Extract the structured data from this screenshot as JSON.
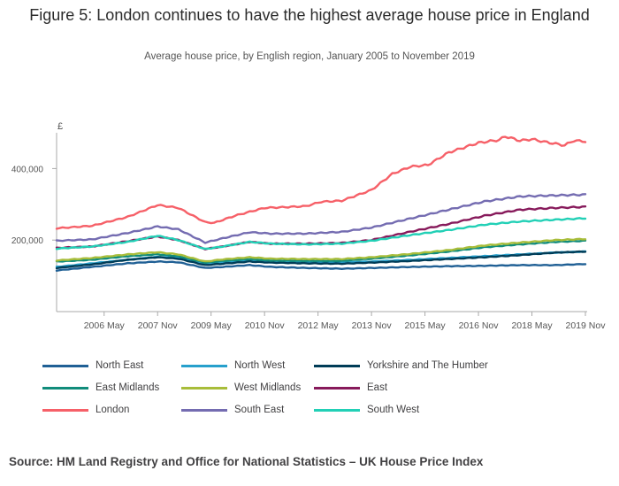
{
  "title": "Figure 5: London continues to have the highest average house price in England",
  "subtitle": "Average house price, by English region, January 2005 to November 2019",
  "source": "Source: HM Land Registry and Office for National Statistics – UK House Price Index",
  "chart_data": {
    "type": "line",
    "title": "Figure 5: London continues to have the highest average house price in England",
    "subtitle": "Average house price, by English region, January 2005 to November 2019",
    "ylabel": "£",
    "xlim": [
      "2005-01",
      "2019-11"
    ],
    "ylim": [
      0,
      500000
    ],
    "y_ticks": [
      200000,
      400000
    ],
    "y_tick_labels": [
      "200,000",
      "400,000"
    ],
    "x_ticks": [
      "2006-05",
      "2007-11",
      "2009-05",
      "2010-11",
      "2012-05",
      "2013-11",
      "2015-05",
      "2016-11",
      "2018-05",
      "2019-11"
    ],
    "x_tick_labels": [
      "2006 May",
      "2007 Nov",
      "2009 May",
      "2010 Nov",
      "2012 May",
      "2013 Nov",
      "2015 May",
      "2016 Nov",
      "2018 May",
      "2019 Nov"
    ],
    "grid": false,
    "legend": "bottom",
    "series": [
      {
        "name": "North East",
        "color": "#206095",
        "points": [
          [
            "2005-01",
            115000
          ],
          [
            "2006-01",
            125000
          ],
          [
            "2007-01",
            135000
          ],
          [
            "2007-11",
            140000
          ],
          [
            "2008-06",
            138000
          ],
          [
            "2009-03",
            122000
          ],
          [
            "2009-09",
            125000
          ],
          [
            "2010-06",
            130000
          ],
          [
            "2011-01",
            125000
          ],
          [
            "2012-01",
            122000
          ],
          [
            "2013-01",
            120000
          ],
          [
            "2013-11",
            122000
          ],
          [
            "2015-01",
            125000
          ],
          [
            "2016-01",
            127000
          ],
          [
            "2017-01",
            128000
          ],
          [
            "2018-01",
            130000
          ],
          [
            "2019-01",
            130000
          ],
          [
            "2019-11",
            133000
          ]
        ]
      },
      {
        "name": "North West",
        "color": "#27a0cc",
        "points": [
          [
            "2005-01",
            125000
          ],
          [
            "2006-01",
            135000
          ],
          [
            "2007-01",
            145000
          ],
          [
            "2007-11",
            153000
          ],
          [
            "2008-06",
            150000
          ],
          [
            "2009-03",
            133000
          ],
          [
            "2009-09",
            137000
          ],
          [
            "2010-06",
            142000
          ],
          [
            "2011-01",
            138000
          ],
          [
            "2012-01",
            137000
          ],
          [
            "2013-01",
            137000
          ],
          [
            "2013-11",
            140000
          ],
          [
            "2015-01",
            145000
          ],
          [
            "2016-01",
            150000
          ],
          [
            "2017-01",
            155000
          ],
          [
            "2018-01",
            160000
          ],
          [
            "2019-01",
            165000
          ],
          [
            "2019-11",
            168000
          ]
        ]
      },
      {
        "name": "Yorkshire and The Humber",
        "color": "#003c57",
        "points": [
          [
            "2005-01",
            122000
          ],
          [
            "2006-01",
            132000
          ],
          [
            "2007-01",
            145000
          ],
          [
            "2007-11",
            152000
          ],
          [
            "2008-06",
            148000
          ],
          [
            "2009-03",
            130000
          ],
          [
            "2009-09",
            134000
          ],
          [
            "2010-06",
            140000
          ],
          [
            "2011-01",
            137000
          ],
          [
            "2012-01",
            135000
          ],
          [
            "2013-01",
            134000
          ],
          [
            "2013-11",
            137000
          ],
          [
            "2015-01",
            142000
          ],
          [
            "2016-01",
            147000
          ],
          [
            "2017-01",
            152000
          ],
          [
            "2018-01",
            158000
          ],
          [
            "2019-01",
            165000
          ],
          [
            "2019-11",
            168000
          ]
        ]
      },
      {
        "name": "East Midlands",
        "color": "#118c7b",
        "points": [
          [
            "2005-01",
            140000
          ],
          [
            "2006-01",
            145000
          ],
          [
            "2007-01",
            155000
          ],
          [
            "2007-11",
            160000
          ],
          [
            "2008-06",
            155000
          ],
          [
            "2009-03",
            137000
          ],
          [
            "2009-09",
            142000
          ],
          [
            "2010-06",
            147000
          ],
          [
            "2011-01",
            143000
          ],
          [
            "2012-01",
            142000
          ],
          [
            "2013-01",
            142000
          ],
          [
            "2013-11",
            148000
          ],
          [
            "2015-01",
            158000
          ],
          [
            "2016-01",
            168000
          ],
          [
            "2017-01",
            180000
          ],
          [
            "2018-01",
            188000
          ],
          [
            "2019-01",
            195000
          ],
          [
            "2019-11",
            198000
          ]
        ]
      },
      {
        "name": "West Midlands",
        "color": "#a8bd3a",
        "points": [
          [
            "2005-01",
            143000
          ],
          [
            "2006-01",
            150000
          ],
          [
            "2007-01",
            160000
          ],
          [
            "2007-11",
            166000
          ],
          [
            "2008-06",
            160000
          ],
          [
            "2009-03",
            140000
          ],
          [
            "2009-09",
            146000
          ],
          [
            "2010-06",
            152000
          ],
          [
            "2011-01",
            148000
          ],
          [
            "2012-01",
            147000
          ],
          [
            "2013-01",
            147000
          ],
          [
            "2013-11",
            152000
          ],
          [
            "2015-01",
            162000
          ],
          [
            "2016-01",
            172000
          ],
          [
            "2017-01",
            185000
          ],
          [
            "2018-01",
            193000
          ],
          [
            "2019-01",
            200000
          ],
          [
            "2019-11",
            203000
          ]
        ]
      },
      {
        "name": "East",
        "color": "#871a5b",
        "points": [
          [
            "2005-01",
            178000
          ],
          [
            "2006-01",
            182000
          ],
          [
            "2007-01",
            197000
          ],
          [
            "2007-11",
            210000
          ],
          [
            "2008-06",
            200000
          ],
          [
            "2009-03",
            175000
          ],
          [
            "2009-09",
            182000
          ],
          [
            "2010-06",
            195000
          ],
          [
            "2011-01",
            190000
          ],
          [
            "2012-01",
            190000
          ],
          [
            "2013-01",
            192000
          ],
          [
            "2013-11",
            200000
          ],
          [
            "2015-01",
            225000
          ],
          [
            "2016-01",
            245000
          ],
          [
            "2017-01",
            268000
          ],
          [
            "2018-01",
            285000
          ],
          [
            "2019-01",
            290000
          ],
          [
            "2019-11",
            293000
          ]
        ]
      },
      {
        "name": "London",
        "color": "#f66068",
        "points": [
          [
            "2005-01",
            233000
          ],
          [
            "2006-01",
            240000
          ],
          [
            "2007-01",
            265000
          ],
          [
            "2007-11",
            298000
          ],
          [
            "2008-06",
            290000
          ],
          [
            "2009-03",
            250000
          ],
          [
            "2009-06",
            248000
          ],
          [
            "2010-01",
            268000
          ],
          [
            "2010-11",
            290000
          ],
          [
            "2011-06",
            292000
          ],
          [
            "2012-01",
            295000
          ],
          [
            "2012-06",
            307000
          ],
          [
            "2013-01",
            310000
          ],
          [
            "2013-11",
            340000
          ],
          [
            "2014-06",
            385000
          ],
          [
            "2014-12",
            405000
          ],
          [
            "2015-06",
            410000
          ],
          [
            "2016-01",
            445000
          ],
          [
            "2016-11",
            472000
          ],
          [
            "2017-06",
            480000
          ],
          [
            "2017-08",
            490000
          ],
          [
            "2018-01",
            478000
          ],
          [
            "2018-05",
            482000
          ],
          [
            "2018-09",
            475000
          ],
          [
            "2019-04",
            465000
          ],
          [
            "2019-07",
            478000
          ],
          [
            "2019-11",
            476000
          ]
        ]
      },
      {
        "name": "South East",
        "color": "#746cb1",
        "points": [
          [
            "2005-01",
            198000
          ],
          [
            "2006-01",
            202000
          ],
          [
            "2007-01",
            220000
          ],
          [
            "2007-11",
            238000
          ],
          [
            "2008-06",
            230000
          ],
          [
            "2009-03",
            193000
          ],
          [
            "2009-09",
            205000
          ],
          [
            "2010-06",
            222000
          ],
          [
            "2011-01",
            218000
          ],
          [
            "2012-01",
            218000
          ],
          [
            "2013-01",
            223000
          ],
          [
            "2013-11",
            235000
          ],
          [
            "2015-01",
            262000
          ],
          [
            "2016-01",
            285000
          ],
          [
            "2017-01",
            308000
          ],
          [
            "2018-01",
            322000
          ],
          [
            "2019-01",
            325000
          ],
          [
            "2019-11",
            327000
          ]
        ]
      },
      {
        "name": "South West",
        "color": "#22d0b6",
        "points": [
          [
            "2005-01",
            176000
          ],
          [
            "2006-01",
            182000
          ],
          [
            "2007-01",
            195000
          ],
          [
            "2007-11",
            212000
          ],
          [
            "2008-06",
            200000
          ],
          [
            "2009-03",
            175000
          ],
          [
            "2009-09",
            182000
          ],
          [
            "2010-06",
            195000
          ],
          [
            "2011-01",
            190000
          ],
          [
            "2012-01",
            188000
          ],
          [
            "2013-01",
            190000
          ],
          [
            "2013-11",
            198000
          ],
          [
            "2015-01",
            215000
          ],
          [
            "2016-01",
            228000
          ],
          [
            "2017-01",
            243000
          ],
          [
            "2018-01",
            252000
          ],
          [
            "2019-01",
            257000
          ],
          [
            "2019-11",
            261000
          ]
        ]
      }
    ]
  }
}
